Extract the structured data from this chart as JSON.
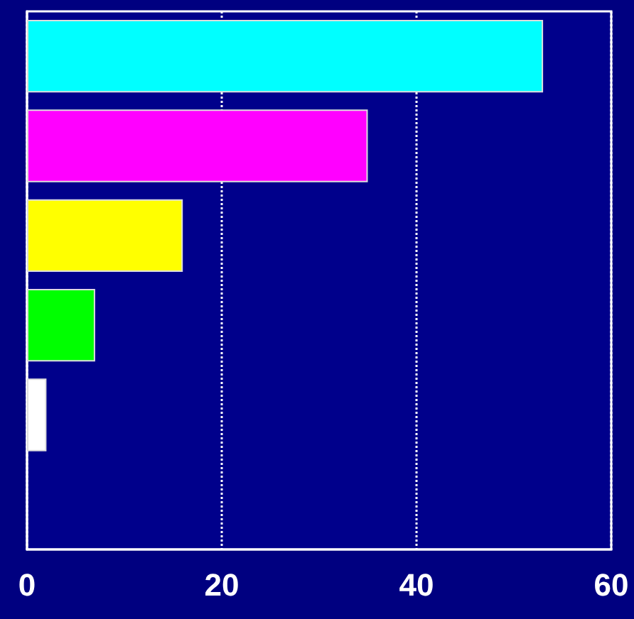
{
  "chart_data": {
    "type": "bar",
    "orientation": "horizontal",
    "categories": [
      null,
      null,
      null,
      null,
      null,
      null
    ],
    "values": [
      53,
      35,
      16,
      7,
      2,
      null
    ],
    "colors": [
      "#00ffff",
      "#ff00ff",
      "#ffff00",
      "#00ff00",
      "#ffffff",
      "#ffffff"
    ],
    "xlim": [
      0,
      60
    ],
    "xticks": [
      0,
      20,
      40,
      60
    ],
    "grid": "x",
    "tick_labels": "x"
  }
}
